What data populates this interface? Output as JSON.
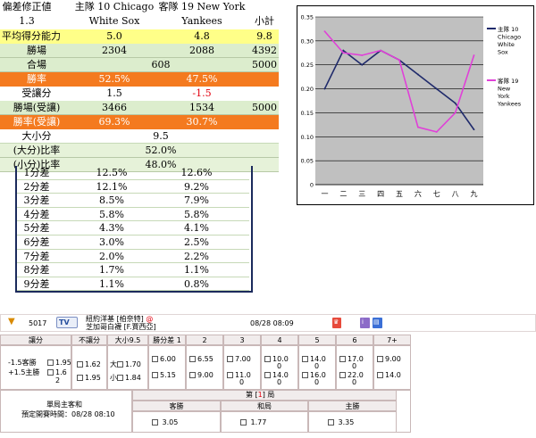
{
  "stats": {
    "header": {
      "corr_label": "偏差修正値",
      "corr_value": "1.3",
      "home_line1": "主隊  10 Chicago",
      "home_line2": "White Sox",
      "away_line1": "客隊  19 New York",
      "away_line2": "Yankees",
      "total_label": "小計"
    },
    "rows": {
      "avg_ability": {
        "label": "平均得分能力",
        "home": "5.0",
        "away": "4.8",
        "total": "9.8"
      },
      "wins": {
        "label": "勝場",
        "home": "2304",
        "away": "2088",
        "total": "4392"
      },
      "draws": {
        "label": "合場",
        "mid": "608",
        "total": "5000"
      },
      "win_rate": {
        "label": "勝率",
        "home": "52.5%",
        "away": "47.5%"
      },
      "handicap": {
        "label": "受讓分",
        "home": "1.5",
        "away": "-1.5"
      },
      "hcp_wins": {
        "label": "勝場(受讓)",
        "home": "3466",
        "away": "1534",
        "total": "5000"
      },
      "hcp_rate": {
        "label": "勝率(受讓)",
        "home": "69.3%",
        "away": "30.7%"
      },
      "big_small": {
        "label": "大小分",
        "value": "9.5"
      },
      "big_ratio": {
        "label": "(大分)比率",
        "value": "52.0%"
      },
      "small_ratio": {
        "label": "(小分)比率",
        "value": "48.0%"
      }
    },
    "diffs": [
      {
        "label": "1分差",
        "home": "12.5%",
        "away": "12.6%"
      },
      {
        "label": "2分差",
        "home": "12.1%",
        "away": "9.2%"
      },
      {
        "label": "3分差",
        "home": "8.5%",
        "away": "7.9%"
      },
      {
        "label": "4分差",
        "home": "5.8%",
        "away": "5.8%"
      },
      {
        "label": "5分差",
        "home": "4.3%",
        "away": "4.1%"
      },
      {
        "label": "6分差",
        "home": "3.0%",
        "away": "2.5%"
      },
      {
        "label": "7分差",
        "home": "2.0%",
        "away": "2.2%"
      },
      {
        "label": "8分差",
        "home": "1.7%",
        "away": "1.1%"
      },
      {
        "label": "9分差",
        "home": "1.1%",
        "away": "0.8%"
      }
    ]
  },
  "chart_data": {
    "type": "line",
    "categories": [
      "一",
      "二",
      "三",
      "四",
      "五",
      "六",
      "七",
      "八",
      "九"
    ],
    "ylim": [
      0,
      0.35
    ],
    "yticks": [
      "0",
      "0.05",
      "0.10",
      "0.15",
      "0.20",
      "0.25",
      "0.30",
      "0.35"
    ],
    "grid": true,
    "legend_position": "right",
    "series": [
      {
        "name": "主隊 10 Chicago White Sox",
        "color": "#1f2a6b",
        "values": [
          0.2,
          0.28,
          0.25,
          0.28,
          0.26,
          0.23,
          0.2,
          0.17,
          0.115
        ]
      },
      {
        "name": "客隊 19 New York Yankees",
        "color": "#e040d8",
        "values": [
          0.32,
          0.275,
          0.27,
          0.28,
          0.26,
          0.12,
          0.11,
          0.15,
          0.27
        ]
      }
    ],
    "legend": [
      {
        "lines": [
          "主隊 10",
          "Chicago",
          "White",
          "Sox"
        ]
      },
      {
        "lines": [
          "客隊 19",
          "New",
          "York",
          "Yankees"
        ]
      }
    ]
  },
  "board": {
    "colors": {
      "border": "#c9b8b8",
      "header_bg": "#f1ecec",
      "round_red": "#e3000f"
    },
    "game_id": "5017",
    "teams_line1": "紐約洋基 [柏奈特] ",
    "teams_line2": "芝加哥白襪 [F.賈西亞]",
    "datetime": "08/28 08:09",
    "headers": [
      "讓分",
      "不讓分",
      "大小9.5",
      "勝分差 1",
      "2",
      "3",
      "4",
      "5",
      "6",
      "7+"
    ],
    "handicap": {
      "away": "-1.5客勝",
      "away_odds": "1.95",
      "home": "+1.5主勝",
      "home_odds": "1.6",
      "home_odds2": "2"
    },
    "moneyline": [
      "1.62",
      "1.95"
    ],
    "over_under": {
      "big": "大",
      "big_odds": "1.70",
      "small": "小",
      "small_odds": "1.84"
    },
    "margin": [
      {
        "top": "6.00",
        "bottom": "5.15"
      },
      {
        "top": "6.55",
        "bottom": "9.00"
      },
      {
        "top": "7.00",
        "bottom": "11.0",
        "bottom2": "0"
      },
      {
        "top": "10.0",
        "top2": "0",
        "bottom": "14.0",
        "bottom2": "0"
      },
      {
        "top": "14.0",
        "top2": "0",
        "bottom": "16.0",
        "bottom2": "0"
      },
      {
        "top": "17.0",
        "top2": "0",
        "bottom": "22.0",
        "bottom2": "0"
      },
      {
        "top": "9.00",
        "bottom": "14.0"
      }
    ],
    "footer": {
      "label1": "單局主客和",
      "label2": "預定開賽時間：08/28 08:10",
      "round_prefix": "第 [",
      "round_num": "1",
      "round_suffix": "] 局",
      "cols": [
        {
          "label": "客勝",
          "odds": "3.05"
        },
        {
          "label": "和局",
          "odds": "1.77"
        },
        {
          "label": "主勝",
          "odds": "3.35"
        }
      ]
    }
  }
}
